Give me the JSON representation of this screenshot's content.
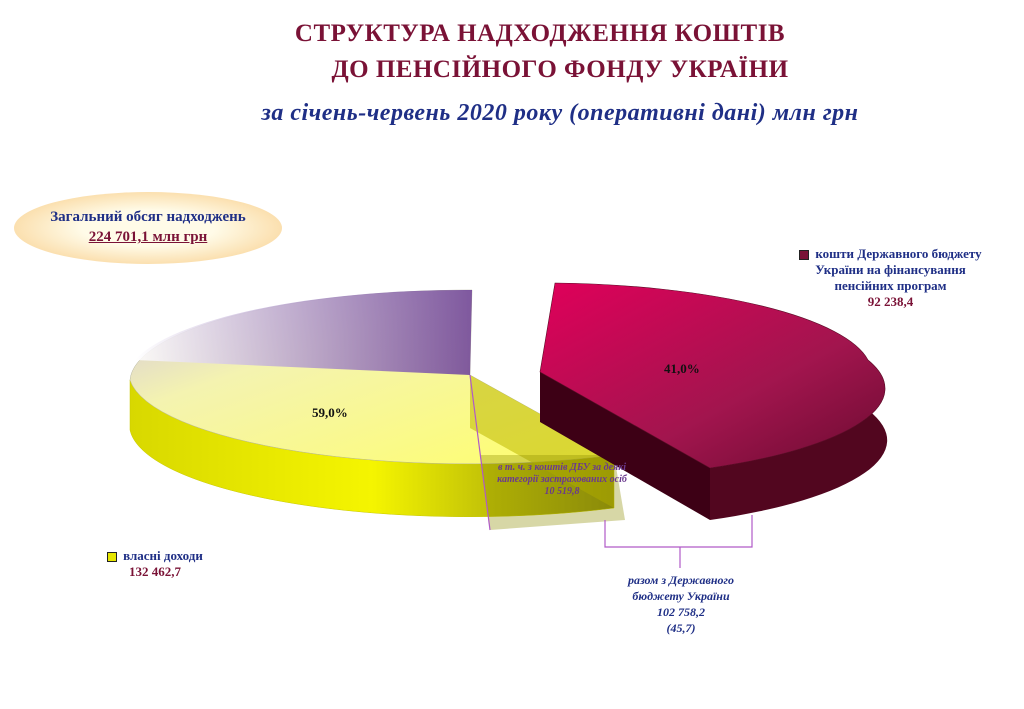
{
  "title": {
    "line1": "СТРУКТУРА  НАДХОДЖЕННЯ КОШТІВ",
    "line2": "ДО ПЕНСІЙНОГО ФОНДУ УКРАЇНИ",
    "subtitle": "за січень-червень 2020 року (оперативні дані) млн грн"
  },
  "total": {
    "label": "Загальний обсяг надходжень",
    "value": "224 701,1 млн грн"
  },
  "legend": {
    "budget": {
      "label": "кошти Державного бюджету України на фінансування пенсійних програм",
      "value": "92 238,4",
      "color": "#7a1236"
    },
    "own": {
      "label": "власні доходи",
      "value": "132 462,7",
      "color": "#e6e600"
    }
  },
  "notes": {
    "inner": "в т. ч. з коштів ДБУ за деякі категорії застрахованих осіб",
    "inner_value": "10 519,8",
    "sum_label": "разом з Державного бюджету України",
    "sum_value": "102 758,2",
    "sum_pct": "(45,7)"
  },
  "chart_data": {
    "type": "pie",
    "labels": [
      "власні доходи",
      "кошти Державного бюджету України на фінансування пенсійних програм"
    ],
    "values": [
      132462.7,
      92238.4
    ],
    "percent_labels": [
      "59,0%",
      "41,0%"
    ],
    "colors": [
      "#e6e600",
      "#8b1a4a"
    ],
    "annotations": [
      {
        "text": "в т. ч. з коштів ДБУ за деякі категорії застрахованих осіб",
        "value": 10519.8
      },
      {
        "text": "разом з Державного бюджету України",
        "value": 102758.2,
        "percent": 45.7
      }
    ]
  }
}
